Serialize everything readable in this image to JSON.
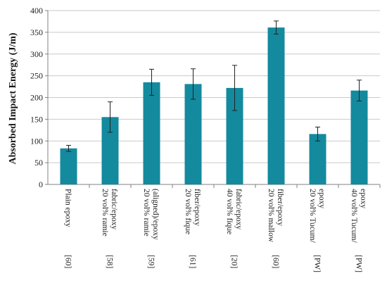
{
  "chart_data": {
    "type": "bar",
    "title": "",
    "xlabel": "",
    "ylabel": "Absorbed Impact Energy (J/m)",
    "ylim": [
      0,
      400
    ],
    "yticks": [
      0,
      50,
      100,
      150,
      200,
      250,
      300,
      350,
      400
    ],
    "grid": true,
    "colors": {
      "bar": "#138a9e",
      "grid": "#c9c9c9",
      "axis": "#808080",
      "error": "#222222"
    },
    "categories": [
      {
        "lines": [
          "Plain epoxy"
        ],
        "ref": "[60]"
      },
      {
        "lines": [
          "20 vol% ramie",
          "fabric/epoxy"
        ],
        "ref": "[58]"
      },
      {
        "lines": [
          "20 vol% ramie",
          "(aligned)/epoxy"
        ],
        "ref": "[59]"
      },
      {
        "lines": [
          "20 vol% fique",
          "fiber/epoxy"
        ],
        "ref": "[61]"
      },
      {
        "lines": [
          "40 vol% fique",
          "fabric/epoxy"
        ],
        "ref": "[20]"
      },
      {
        "lines": [
          "20 vol% mallow",
          "fiber/epoxy"
        ],
        "ref": "[60]"
      },
      {
        "lines": [
          "20 vol% Tucum/",
          "epoxy"
        ],
        "ref": "[PW]"
      },
      {
        "lines": [
          "40 vol% Tucum/",
          "epoxy"
        ],
        "ref": "[PW]"
      }
    ],
    "values": [
      83,
      155,
      235,
      231,
      222,
      361,
      116,
      216
    ],
    "errors": [
      7,
      35,
      30,
      35,
      52,
      15,
      16,
      24
    ]
  }
}
